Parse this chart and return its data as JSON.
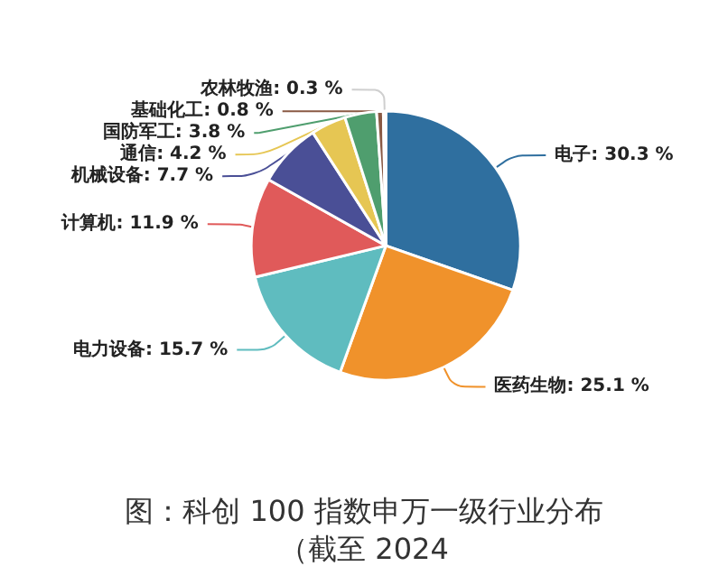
{
  "chart_data": {
    "type": "pie",
    "title": "图：科创 100 指数申万一级行业分布",
    "annotations": [
      "（截至 2024"
    ],
    "categories": [
      "电子",
      "医药生物",
      "电力设备",
      "计算机",
      "机械设备",
      "通信",
      "国防军工",
      "基础化工",
      "农林牧渔"
    ],
    "values": [
      30.3,
      25.1,
      15.7,
      11.9,
      7.7,
      4.2,
      3.8,
      0.8,
      0.3
    ],
    "colors": [
      "#2f6f9f",
      "#f0922b",
      "#5fbcbf",
      "#e05a5a",
      "#4a4f96",
      "#e6c653",
      "#4f9e6e",
      "#8a5a44",
      "#cfcfcf"
    ],
    "value_labels": [
      "30.3 %",
      "25.1 %",
      "15.7 %",
      "11.9 %",
      "7.7 %",
      "4.2 %",
      "3.8 %",
      "0.8 %",
      "0.3 %"
    ],
    "legend": false
  }
}
